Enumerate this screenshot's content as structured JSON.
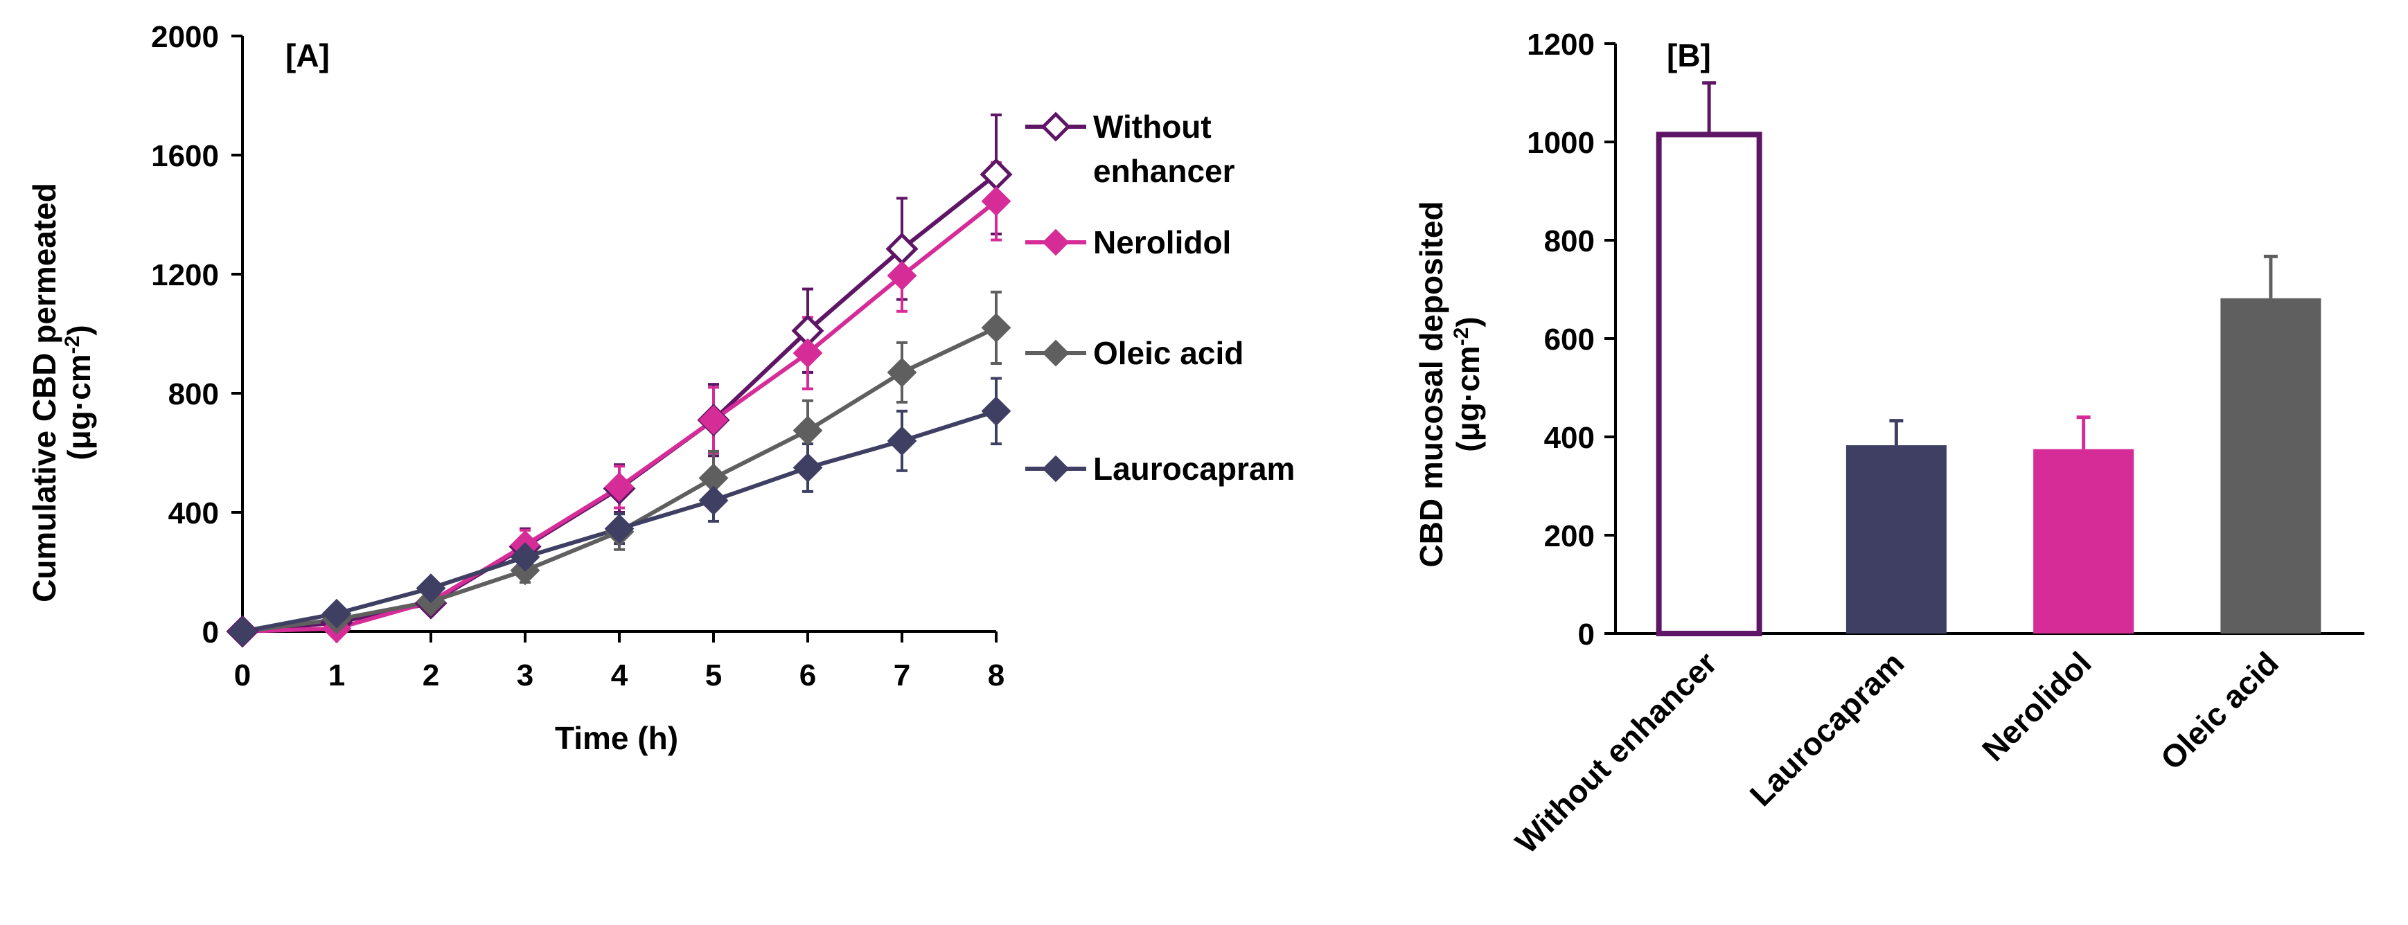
{
  "colors": {
    "without": "#5E1565",
    "nerolidol": "#D62C98",
    "oleic": "#5F5F5F",
    "lauro": "#3E3F62",
    "axis": "#000000"
  },
  "chart_data": [
    {
      "type": "line",
      "panel_label": "[A]",
      "xlabel": "Time (h)",
      "ylabel_line1": "Cumulative CBD permeated",
      "ylabel_unit_pre": "(μg·cm",
      "ylabel_unit_sup": "-2",
      "ylabel_unit_post": ")",
      "x": [
        0,
        1,
        2,
        3,
        4,
        5,
        6,
        7,
        8
      ],
      "xticks": [
        "0",
        "1",
        "2",
        "3",
        "4",
        "5",
        "6",
        "7",
        "8"
      ],
      "yticks": [
        "0",
        "400",
        "800",
        "1200",
        "1600",
        "2000"
      ],
      "xlim": [
        0,
        8
      ],
      "ylim": [
        0,
        2000
      ],
      "legend_position": "right",
      "series": [
        {
          "key": "without",
          "name_lines": [
            "Without",
            "enhancer"
          ],
          "marker": "open-diamond",
          "values": [
            0,
            30,
            95,
            285,
            480,
            710,
            1010,
            1285,
            1535
          ],
          "errors": [
            0,
            10,
            20,
            60,
            80,
            120,
            140,
            170,
            200
          ]
        },
        {
          "key": "nerolidol",
          "name_lines": [
            "Nerolidol"
          ],
          "marker": "filled-diamond",
          "values": [
            0,
            10,
            100,
            290,
            485,
            710,
            935,
            1195,
            1445
          ],
          "errors": [
            0,
            10,
            20,
            50,
            70,
            110,
            120,
            120,
            130
          ]
        },
        {
          "key": "oleic",
          "name_lines": [
            "Oleic acid"
          ],
          "marker": "filled-diamond",
          "values": [
            0,
            40,
            100,
            205,
            335,
            515,
            675,
            870,
            1020
          ],
          "errors": [
            0,
            10,
            20,
            40,
            60,
            90,
            100,
            100,
            120
          ]
        },
        {
          "key": "lauro",
          "name_lines": [
            "Laurocapram"
          ],
          "marker": "filled-diamond",
          "values": [
            0,
            60,
            145,
            250,
            345,
            440,
            550,
            640,
            740
          ],
          "errors": [
            0,
            10,
            20,
            30,
            50,
            70,
            80,
            100,
            110
          ]
        }
      ]
    },
    {
      "type": "bar",
      "panel_label": "[B]",
      "ylabel_line1": "CBD mucosal deposited",
      "ylabel_unit_pre": "(μg·cm",
      "ylabel_unit_sup": "-2",
      "ylabel_unit_post": ")",
      "ylim": [
        0,
        1200
      ],
      "yticks": [
        "0",
        "200",
        "400",
        "600",
        "800",
        "1000",
        "1200"
      ],
      "categories": [
        "Without enhancer",
        "Laurocapram",
        "Nerolidol",
        "Oleic acid"
      ],
      "values": [
        1015,
        383,
        375,
        682
      ],
      "errors": [
        105,
        50,
        65,
        85
      ],
      "styles": [
        "open",
        "lauro",
        "nerolidol",
        "oleic"
      ]
    }
  ]
}
